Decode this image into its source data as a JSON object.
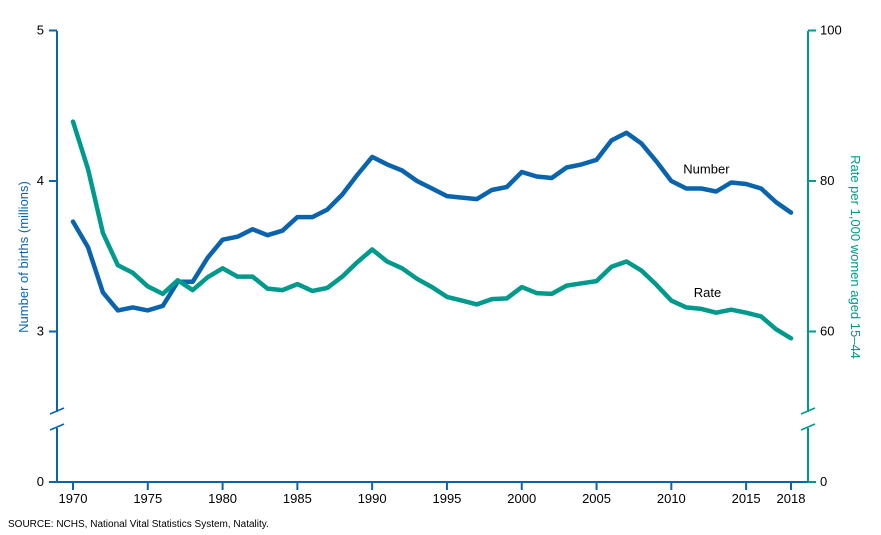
{
  "chart_data": {
    "type": "line",
    "colors": {
      "number": "#0a64ad",
      "rate": "#009a8c"
    },
    "x_ticks": [
      1970,
      1975,
      1980,
      1985,
      1990,
      1995,
      2000,
      2005,
      2010,
      2015,
      2018
    ],
    "left_axis": {
      "label": "Number of births (millions)",
      "ticks": [
        0,
        3,
        4,
        5
      ],
      "range": [
        2.5,
        5
      ],
      "break": true
    },
    "right_axis": {
      "label": "Rate per 1,000 women aged 15–44",
      "ticks": [
        0,
        60,
        80,
        100
      ],
      "range": [
        50,
        100
      ],
      "break": true
    },
    "series": [
      {
        "name": "Number",
        "axis": "left",
        "points": [
          [
            1970,
            3.73
          ],
          [
            1971,
            3.56
          ],
          [
            1972,
            3.26
          ],
          [
            1973,
            3.14
          ],
          [
            1974,
            3.16
          ],
          [
            1975,
            3.14
          ],
          [
            1976,
            3.17
          ],
          [
            1977,
            3.33
          ],
          [
            1978,
            3.33
          ],
          [
            1979,
            3.49
          ],
          [
            1980,
            3.61
          ],
          [
            1981,
            3.63
          ],
          [
            1982,
            3.68
          ],
          [
            1983,
            3.64
          ],
          [
            1984,
            3.67
          ],
          [
            1985,
            3.76
          ],
          [
            1986,
            3.76
          ],
          [
            1987,
            3.81
          ],
          [
            1988,
            3.91
          ],
          [
            1989,
            4.04
          ],
          [
            1990,
            4.16
          ],
          [
            1991,
            4.11
          ],
          [
            1992,
            4.07
          ],
          [
            1993,
            4.0
          ],
          [
            1994,
            3.95
          ],
          [
            1995,
            3.9
          ],
          [
            1996,
            3.89
          ],
          [
            1997,
            3.88
          ],
          [
            1998,
            3.94
          ],
          [
            1999,
            3.96
          ],
          [
            2000,
            4.06
          ],
          [
            2001,
            4.03
          ],
          [
            2002,
            4.02
          ],
          [
            2003,
            4.09
          ],
          [
            2004,
            4.11
          ],
          [
            2005,
            4.14
          ],
          [
            2006,
            4.27
          ],
          [
            2007,
            4.32
          ],
          [
            2008,
            4.25
          ],
          [
            2009,
            4.13
          ],
          [
            2010,
            4.0
          ],
          [
            2011,
            3.95
          ],
          [
            2012,
            3.95
          ],
          [
            2013,
            3.93
          ],
          [
            2014,
            3.99
          ],
          [
            2015,
            3.98
          ],
          [
            2016,
            3.95
          ],
          [
            2017,
            3.86
          ],
          [
            2018,
            3.79
          ]
        ]
      },
      {
        "name": "Rate",
        "axis": "right",
        "points": [
          [
            1970,
            87.9
          ],
          [
            1971,
            81.6
          ],
          [
            1972,
            73.1
          ],
          [
            1973,
            68.8
          ],
          [
            1974,
            67.8
          ],
          [
            1975,
            66.0
          ],
          [
            1976,
            65.0
          ],
          [
            1977,
            66.8
          ],
          [
            1978,
            65.5
          ],
          [
            1979,
            67.2
          ],
          [
            1980,
            68.4
          ],
          [
            1981,
            67.3
          ],
          [
            1982,
            67.3
          ],
          [
            1983,
            65.7
          ],
          [
            1984,
            65.5
          ],
          [
            1985,
            66.3
          ],
          [
            1986,
            65.4
          ],
          [
            1987,
            65.8
          ],
          [
            1988,
            67.3
          ],
          [
            1989,
            69.2
          ],
          [
            1990,
            70.9
          ],
          [
            1991,
            69.3
          ],
          [
            1992,
            68.4
          ],
          [
            1993,
            67.0
          ],
          [
            1994,
            65.9
          ],
          [
            1995,
            64.6
          ],
          [
            1996,
            64.1
          ],
          [
            1997,
            63.6
          ],
          [
            1998,
            64.3
          ],
          [
            1999,
            64.4
          ],
          [
            2000,
            65.9
          ],
          [
            2001,
            65.1
          ],
          [
            2002,
            65.0
          ],
          [
            2003,
            66.1
          ],
          [
            2004,
            66.4
          ],
          [
            2005,
            66.7
          ],
          [
            2006,
            68.6
          ],
          [
            2007,
            69.3
          ],
          [
            2008,
            68.1
          ],
          [
            2009,
            66.2
          ],
          [
            2010,
            64.1
          ],
          [
            2011,
            63.2
          ],
          [
            2012,
            63.0
          ],
          [
            2013,
            62.5
          ],
          [
            2014,
            62.9
          ],
          [
            2015,
            62.5
          ],
          [
            2016,
            62.0
          ],
          [
            2017,
            60.3
          ],
          [
            2018,
            59.1
          ]
        ]
      }
    ],
    "series_labels": [
      {
        "text": "Number",
        "at": [
          2010.8,
          4.05
        ],
        "axis": "left"
      },
      {
        "text": "Rate",
        "at": [
          2011.5,
          64.6
        ],
        "axis": "right"
      }
    ]
  },
  "footer": {
    "source": "SOURCE: NCHS, National Vital Statistics System, Natality."
  }
}
